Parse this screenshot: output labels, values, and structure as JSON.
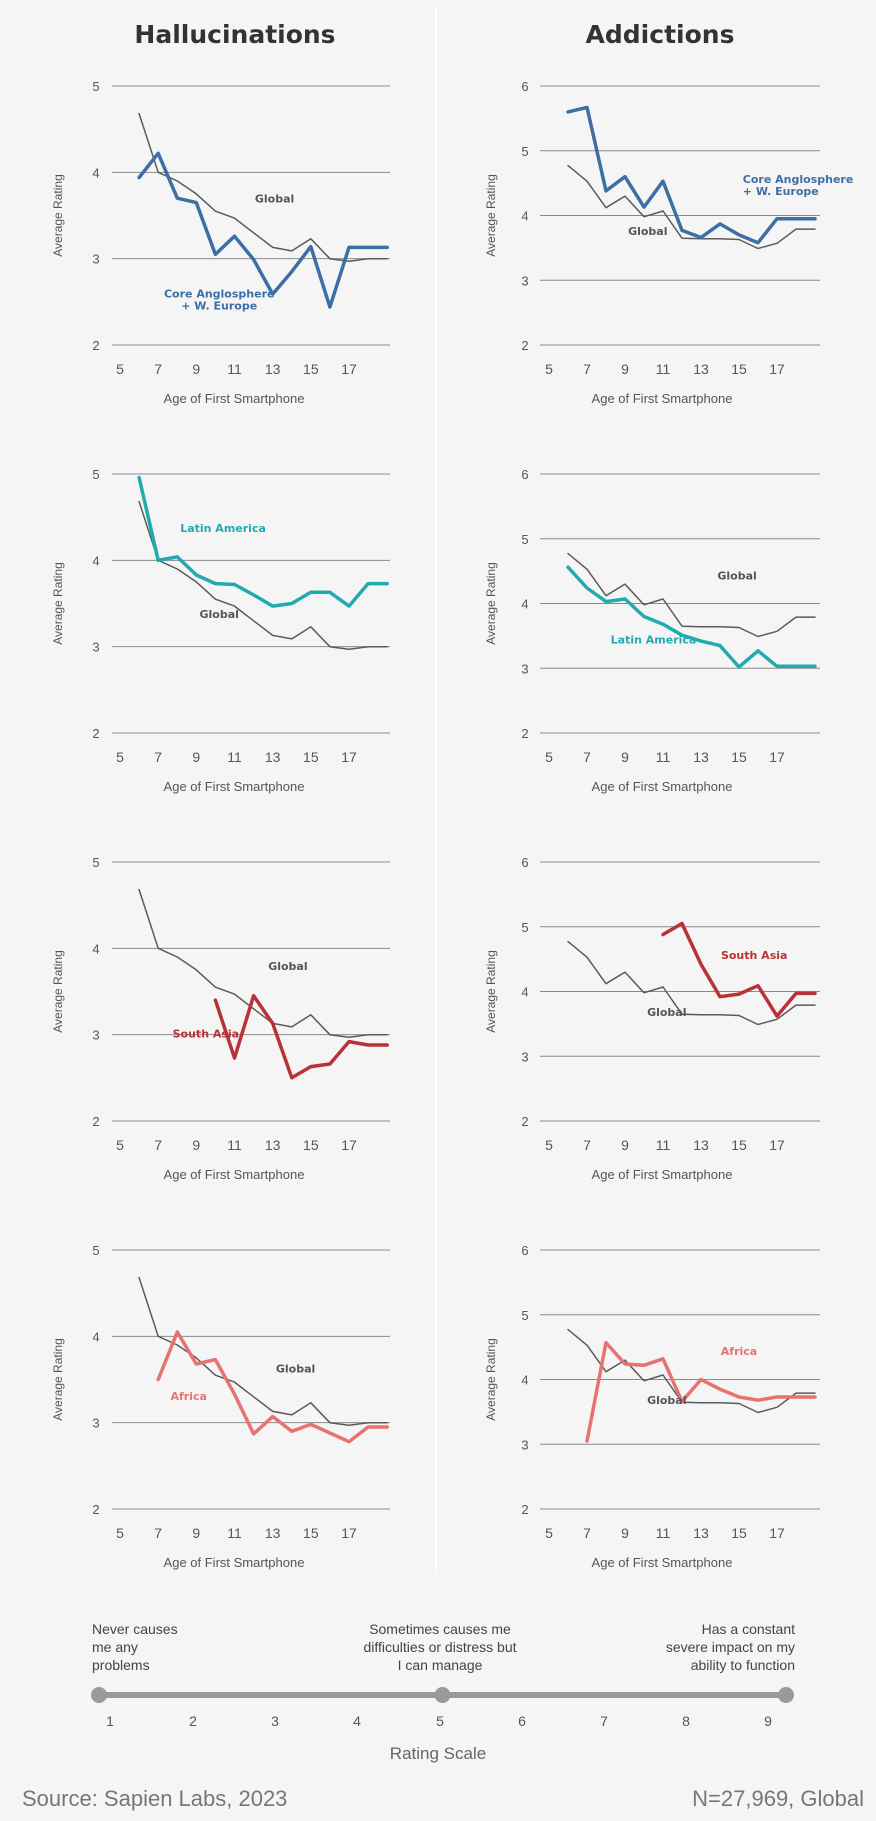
{
  "titles": {
    "left": "Hallucinations",
    "right": "Addictions"
  },
  "axis": {
    "xlabel": "Age of First Smartphone",
    "ylabel": "Average Rating",
    "xticks": [
      5,
      7,
      9,
      11,
      13,
      15,
      17
    ]
  },
  "colors": {
    "global": "#5a5a5a",
    "anglosphere": "#3d6fa5",
    "latin_america": "#21aab0",
    "south_asia": "#b83237",
    "africa": "#e77272",
    "grid": "#8a8a8a"
  },
  "global_series": {
    "x": [
      6,
      7,
      8,
      9,
      10,
      11,
      12,
      13,
      14,
      15,
      16,
      17,
      18,
      19
    ],
    "hallucinations": [
      4.68,
      4.0,
      3.9,
      3.75,
      3.55,
      3.47,
      3.3,
      3.13,
      3.09,
      3.23,
      3.0,
      2.97,
      3.0,
      3.0
    ],
    "addictions": [
      4.77,
      4.53,
      4.12,
      4.3,
      3.98,
      4.07,
      3.65,
      3.64,
      3.64,
      3.63,
      3.49,
      3.57,
      3.79,
      3.79
    ]
  },
  "chart_data": [
    {
      "type": "line",
      "panel": "hallucinations-anglosphere",
      "title": "Hallucinations",
      "xlabel": "Age of First Smartphone",
      "ylabel": "Average Rating",
      "ylim": [
        2,
        5
      ],
      "yticks": [
        2,
        3,
        4,
        5
      ],
      "series": [
        {
          "name": "Global",
          "color": "#5a5a5a",
          "x": [
            6,
            7,
            8,
            9,
            10,
            11,
            12,
            13,
            14,
            15,
            16,
            17,
            18,
            19
          ],
          "values": [
            4.68,
            4.0,
            3.9,
            3.75,
            3.55,
            3.47,
            3.3,
            3.13,
            3.09,
            3.23,
            3.0,
            2.97,
            3.0,
            3.0
          ]
        },
        {
          "name": "Core Anglosphere\n+ W. Europe",
          "color": "#3d6fa5",
          "x": [
            6,
            7,
            8,
            9,
            10,
            11,
            12,
            13,
            14,
            15,
            16,
            17,
            18,
            19
          ],
          "values": [
            3.94,
            4.22,
            3.7,
            3.65,
            3.05,
            3.26,
            2.99,
            2.59,
            2.85,
            3.14,
            2.44,
            3.13,
            3.13,
            3.13
          ]
        }
      ]
    },
    {
      "type": "line",
      "panel": "addictions-anglosphere",
      "title": "Addictions",
      "xlabel": "Age of First Smartphone",
      "ylabel": "Average Rating",
      "ylim": [
        2,
        6
      ],
      "yticks": [
        2,
        3,
        4,
        5,
        6
      ],
      "series": [
        {
          "name": "Global",
          "color": "#5a5a5a",
          "x": [
            6,
            7,
            8,
            9,
            10,
            11,
            12,
            13,
            14,
            15,
            16,
            17,
            18,
            19
          ],
          "values": [
            4.77,
            4.53,
            4.12,
            4.3,
            3.98,
            4.07,
            3.65,
            3.64,
            3.64,
            3.63,
            3.49,
            3.57,
            3.79,
            3.79
          ]
        },
        {
          "name": "Core Anglosphere\n+ W. Europe",
          "color": "#3d6fa5",
          "x": [
            6,
            7,
            8,
            9,
            10,
            11,
            12,
            13,
            14,
            15,
            16,
            17,
            18,
            19
          ],
          "values": [
            5.6,
            5.67,
            4.38,
            4.6,
            4.13,
            4.53,
            3.77,
            3.66,
            3.87,
            3.7,
            3.58,
            3.95,
            3.95,
            3.95
          ]
        }
      ]
    },
    {
      "type": "line",
      "panel": "hallucinations-latin-america",
      "xlabel": "Age of First Smartphone",
      "ylabel": "Average Rating",
      "ylim": [
        2,
        5
      ],
      "yticks": [
        2,
        3,
        4,
        5
      ],
      "series": [
        {
          "name": "Global",
          "color": "#5a5a5a",
          "x": [
            6,
            7,
            8,
            9,
            10,
            11,
            12,
            13,
            14,
            15,
            16,
            17,
            18,
            19
          ],
          "values": [
            4.68,
            4.0,
            3.9,
            3.75,
            3.55,
            3.47,
            3.3,
            3.13,
            3.09,
            3.23,
            3.0,
            2.97,
            3.0,
            3.0
          ]
        },
        {
          "name": "Latin America",
          "color": "#21aab0",
          "x": [
            6,
            7,
            8,
            9,
            10,
            11,
            12,
            13,
            14,
            15,
            16,
            17,
            18,
            19
          ],
          "values": [
            4.96,
            4.0,
            4.04,
            3.83,
            3.73,
            3.72,
            3.6,
            3.47,
            3.5,
            3.63,
            3.63,
            3.47,
            3.73,
            3.73
          ]
        }
      ]
    },
    {
      "type": "line",
      "panel": "addictions-latin-america",
      "xlabel": "Age of First Smartphone",
      "ylabel": "Average Rating",
      "ylim": [
        2,
        6
      ],
      "yticks": [
        2,
        3,
        4,
        5,
        6
      ],
      "series": [
        {
          "name": "Global",
          "color": "#5a5a5a",
          "x": [
            6,
            7,
            8,
            9,
            10,
            11,
            12,
            13,
            14,
            15,
            16,
            17,
            18,
            19
          ],
          "values": [
            4.77,
            4.53,
            4.12,
            4.3,
            3.98,
            4.07,
            3.65,
            3.64,
            3.64,
            3.63,
            3.49,
            3.57,
            3.79,
            3.79
          ]
        },
        {
          "name": "Latin America",
          "color": "#21aab0",
          "x": [
            6,
            7,
            8,
            9,
            10,
            11,
            12,
            13,
            14,
            15,
            16,
            17,
            18,
            19
          ],
          "values": [
            4.56,
            4.24,
            4.03,
            4.07,
            3.8,
            3.68,
            3.51,
            3.42,
            3.35,
            3.02,
            3.27,
            3.03,
            3.03,
            3.03
          ]
        }
      ]
    },
    {
      "type": "line",
      "panel": "hallucinations-south-asia",
      "xlabel": "Age of First Smartphone",
      "ylabel": "Average Rating",
      "ylim": [
        2,
        5
      ],
      "yticks": [
        2,
        3,
        4,
        5
      ],
      "series": [
        {
          "name": "Global",
          "color": "#5a5a5a",
          "x": [
            6,
            7,
            8,
            9,
            10,
            11,
            12,
            13,
            14,
            15,
            16,
            17,
            18,
            19
          ],
          "values": [
            4.68,
            4.0,
            3.9,
            3.75,
            3.55,
            3.47,
            3.3,
            3.13,
            3.09,
            3.23,
            3.0,
            2.97,
            3.0,
            3.0
          ]
        },
        {
          "name": "South Asia",
          "color": "#b83237",
          "x": [
            10,
            11,
            12,
            13,
            14,
            15,
            16,
            17,
            18,
            19
          ],
          "values": [
            3.4,
            2.73,
            3.45,
            3.13,
            2.5,
            2.63,
            2.66,
            2.92,
            2.88,
            2.88
          ]
        }
      ]
    },
    {
      "type": "line",
      "panel": "addictions-south-asia",
      "xlabel": "Age of First Smartphone",
      "ylabel": "Average Rating",
      "ylim": [
        2,
        6
      ],
      "yticks": [
        2,
        3,
        4,
        5,
        6
      ],
      "series": [
        {
          "name": "Global",
          "color": "#5a5a5a",
          "x": [
            6,
            7,
            8,
            9,
            10,
            11,
            12,
            13,
            14,
            15,
            16,
            17,
            18,
            19
          ],
          "values": [
            4.77,
            4.53,
            4.12,
            4.3,
            3.98,
            4.07,
            3.65,
            3.64,
            3.64,
            3.63,
            3.49,
            3.57,
            3.79,
            3.79
          ]
        },
        {
          "name": "South Asia",
          "color": "#b83237",
          "x": [
            11,
            12,
            13,
            14,
            15,
            16,
            17,
            18,
            19
          ],
          "values": [
            4.88,
            5.05,
            4.42,
            3.92,
            3.96,
            4.09,
            3.62,
            3.97,
            3.97
          ]
        }
      ]
    },
    {
      "type": "line",
      "panel": "hallucinations-africa",
      "xlabel": "Age of First Smartphone",
      "ylabel": "Average Rating",
      "ylim": [
        2,
        5
      ],
      "yticks": [
        2,
        3,
        4,
        5
      ],
      "series": [
        {
          "name": "Global",
          "color": "#5a5a5a",
          "x": [
            6,
            7,
            8,
            9,
            10,
            11,
            12,
            13,
            14,
            15,
            16,
            17,
            18,
            19
          ],
          "values": [
            4.68,
            4.0,
            3.9,
            3.75,
            3.55,
            3.47,
            3.3,
            3.13,
            3.09,
            3.23,
            3.0,
            2.97,
            3.0,
            3.0
          ]
        },
        {
          "name": "Africa",
          "color": "#e77272",
          "x": [
            7,
            8,
            9,
            10,
            11,
            12,
            13,
            14,
            15,
            16,
            17,
            18,
            19
          ],
          "values": [
            3.5,
            4.05,
            3.68,
            3.73,
            3.33,
            2.87,
            3.07,
            2.9,
            2.98,
            2.88,
            2.78,
            2.95,
            2.95
          ]
        }
      ]
    },
    {
      "type": "line",
      "panel": "addictions-africa",
      "xlabel": "Age of First Smartphone",
      "ylabel": "Average Rating",
      "ylim": [
        2,
        6
      ],
      "yticks": [
        2,
        3,
        4,
        5,
        6
      ],
      "series": [
        {
          "name": "Global",
          "color": "#5a5a5a",
          "x": [
            6,
            7,
            8,
            9,
            10,
            11,
            12,
            13,
            14,
            15,
            16,
            17,
            18,
            19
          ],
          "values": [
            4.77,
            4.53,
            4.12,
            4.3,
            3.98,
            4.07,
            3.65,
            3.64,
            3.64,
            3.63,
            3.49,
            3.57,
            3.79,
            3.79
          ]
        },
        {
          "name": "Africa",
          "color": "#e77272",
          "x": [
            7,
            8,
            9,
            10,
            11,
            12,
            13,
            14,
            15,
            16,
            17,
            18,
            19
          ],
          "values": [
            3.05,
            4.57,
            4.24,
            4.22,
            4.32,
            3.66,
            4.0,
            3.85,
            3.73,
            3.68,
            3.73,
            3.73,
            3.73
          ]
        }
      ]
    }
  ],
  "rating_scale": {
    "title": "Rating Scale",
    "ticks": [
      "1",
      "2",
      "3",
      "4",
      "5",
      "6",
      "7",
      "8",
      "9"
    ],
    "low_label": "Never causes\nme any\nproblems",
    "mid_label": "Sometimes causes me\ndifficulties or distress but\nI can manage",
    "high_label": "Has a constant\nsevere impact on my\nability to function",
    "markers": [
      1,
      5,
      9
    ]
  },
  "footer": {
    "source": "Source: Sapien Labs, 2023",
    "sample": "N=27,969, Global"
  }
}
